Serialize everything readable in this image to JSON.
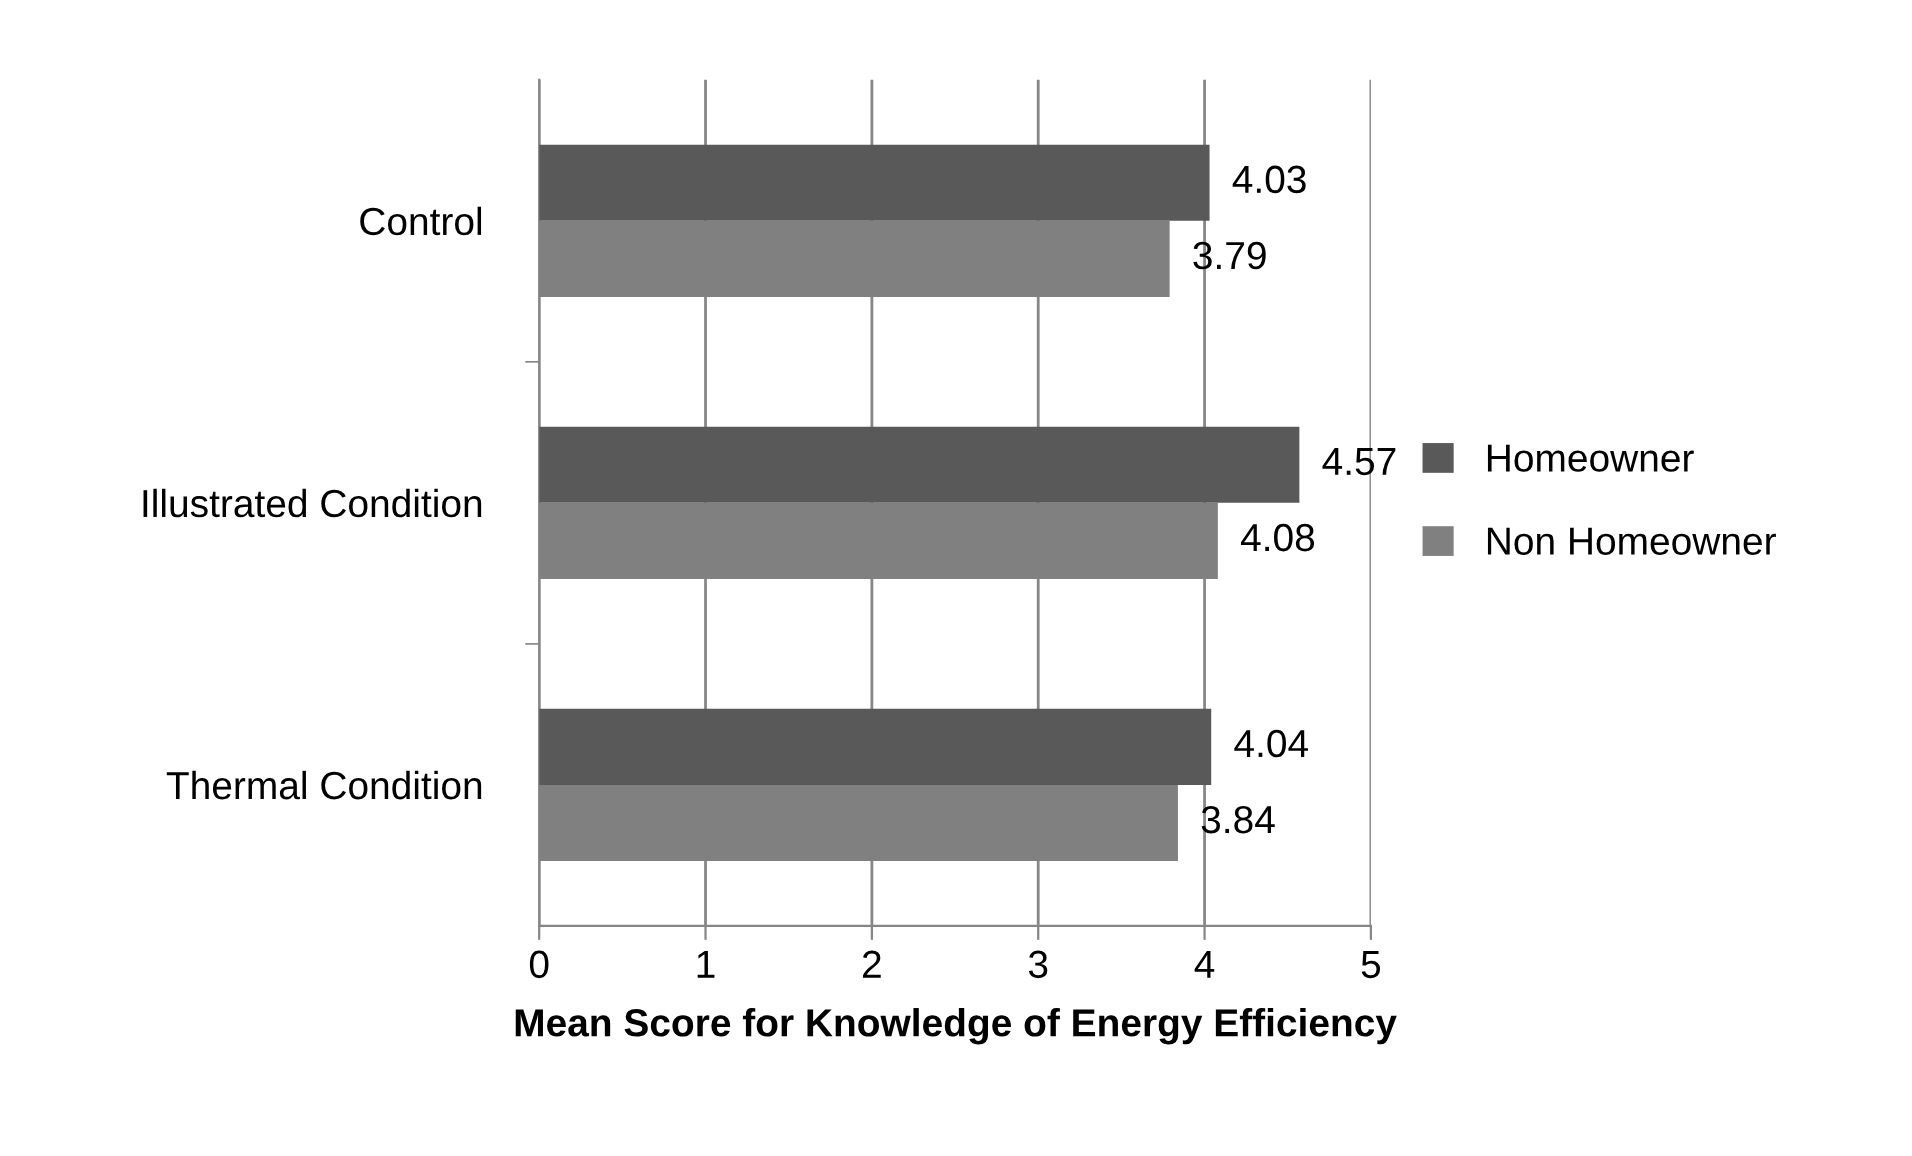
{
  "chart_data": {
    "type": "bar",
    "orientation": "horizontal",
    "categories": [
      "Control",
      "Illustrated Condition",
      "Thermal Condition"
    ],
    "series": [
      {
        "name": "Homeowner",
        "color": "#595959",
        "values": [
          4.03,
          4.57,
          4.04
        ]
      },
      {
        "name": "Non Homeowner",
        "color": "#808080",
        "values": [
          3.79,
          4.08,
          3.84
        ]
      }
    ],
    "xlabel": "Mean Score for Knowledge of Energy Efficiency",
    "xlim": [
      0,
      5
    ],
    "xticks": [
      0,
      1,
      2,
      3,
      4,
      5
    ],
    "grid": "x",
    "legend": "right",
    "data_labels": true
  }
}
